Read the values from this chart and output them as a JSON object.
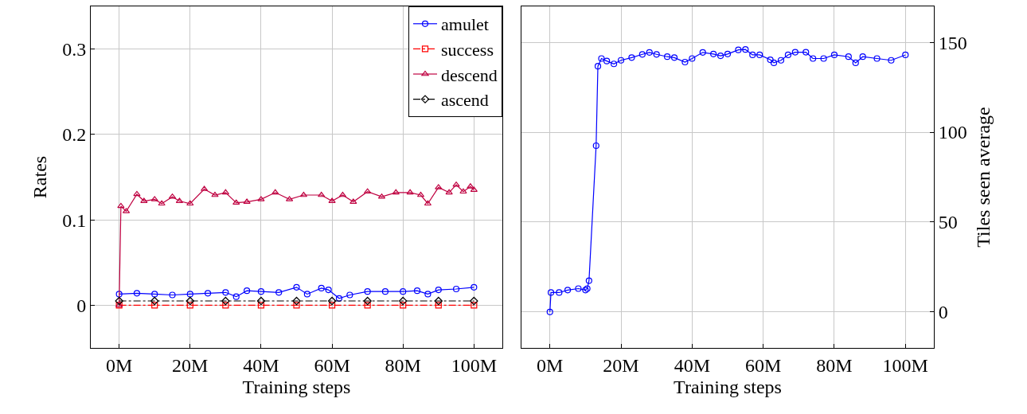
{
  "chart_data": [
    {
      "type": "line",
      "xlabel": "Training steps",
      "ylabel": "Rates",
      "xlim": [
        -8,
        108
      ],
      "ylim": [
        -0.05,
        0.35
      ],
      "xticks": [
        {
          "value": 0,
          "label": "0M"
        },
        {
          "value": 20,
          "label": "20M"
        },
        {
          "value": 40,
          "label": "40M"
        },
        {
          "value": 60,
          "label": "60M"
        },
        {
          "value": 80,
          "label": "80M"
        },
        {
          "value": 100,
          "label": "100M"
        }
      ],
      "yticks": [
        0,
        0.1,
        0.2,
        0.3
      ],
      "grid": true,
      "legend": "top right",
      "series": [
        {
          "name": "amulet",
          "color": "#0000ff",
          "marker": "circle",
          "line_style": "solid",
          "x": [
            0,
            5,
            10,
            15,
            20,
            25,
            30,
            33,
            36,
            40,
            45,
            50,
            53,
            57,
            59,
            62,
            65,
            70,
            75,
            80,
            84,
            87,
            90,
            95,
            100
          ],
          "values": [
            0.013,
            0.014,
            0.013,
            0.012,
            0.013,
            0.014,
            0.015,
            0.01,
            0.017,
            0.016,
            0.015,
            0.021,
            0.013,
            0.02,
            0.018,
            0.008,
            0.012,
            0.016,
            0.016,
            0.016,
            0.017,
            0.013,
            0.018,
            0.019,
            0.021
          ]
        },
        {
          "name": "success",
          "color": "#ff0000",
          "marker": "square",
          "line_style": "dashed",
          "x": [
            0,
            10,
            20,
            30,
            40,
            50,
            60,
            70,
            80,
            90,
            100
          ],
          "values": [
            0,
            0,
            0,
            0,
            0,
            0,
            0,
            0,
            0,
            0,
            0
          ]
        },
        {
          "name": "descend",
          "color": "#bf0040",
          "marker": "triangle",
          "line_style": "solid",
          "x": [
            0,
            0.5,
            2,
            5,
            7,
            10,
            12,
            15,
            17,
            20,
            24,
            27,
            30,
            33,
            36,
            40,
            44,
            48,
            52,
            57,
            60,
            63,
            66,
            70,
            74,
            78,
            82,
            85,
            87,
            90,
            93,
            95,
            97,
            99,
            100
          ],
          "values": [
            0,
            0.116,
            0.11,
            0.13,
            0.122,
            0.124,
            0.119,
            0.127,
            0.122,
            0.119,
            0.136,
            0.129,
            0.132,
            0.12,
            0.121,
            0.124,
            0.132,
            0.124,
            0.129,
            0.129,
            0.122,
            0.129,
            0.121,
            0.133,
            0.127,
            0.132,
            0.132,
            0.129,
            0.119,
            0.138,
            0.132,
            0.141,
            0.133,
            0.139,
            0.135
          ]
        },
        {
          "name": "ascend",
          "color": "#000000",
          "marker": "diamond",
          "line_style": "dashed",
          "x": [
            0,
            10,
            20,
            30,
            40,
            50,
            60,
            70,
            80,
            90,
            100
          ],
          "values": [
            0.005,
            0.005,
            0.005,
            0.005,
            0.005,
            0.005,
            0.005,
            0.005,
            0.005,
            0.005,
            0.005
          ]
        }
      ]
    },
    {
      "type": "line",
      "xlabel": "Training steps",
      "ylabel": "Tiles seen average",
      "xlim": [
        -8,
        108
      ],
      "ylim": [
        -20,
        170
      ],
      "xticks": [
        {
          "value": 0,
          "label": "0M"
        },
        {
          "value": 20,
          "label": "20M"
        },
        {
          "value": 40,
          "label": "40M"
        },
        {
          "value": 60,
          "label": "60M"
        },
        {
          "value": 80,
          "label": "80M"
        },
        {
          "value": 100,
          "label": "100M"
        }
      ],
      "yticks": [
        0,
        50,
        100,
        150
      ],
      "grid": true,
      "legend": false,
      "series": [
        {
          "color": "#0000ff",
          "marker": "circle",
          "line_style": "solid",
          "x": [
            0,
            0.3,
            2.6,
            5,
            8,
            10,
            10.5,
            11,
            13,
            13.5,
            14.5,
            16,
            18,
            20,
            23,
            26,
            28,
            30,
            33,
            35,
            38,
            40,
            43,
            46,
            48,
            50,
            53,
            55,
            57,
            59,
            62,
            63,
            65,
            67,
            69,
            72,
            74,
            77,
            80,
            84,
            86,
            88,
            92,
            96,
            100
          ],
          "values": [
            0,
            10.8,
            10.8,
            12.2,
            13,
            12.2,
            13,
            17.4,
            92.5,
            136.7,
            141,
            139.6,
            138,
            140,
            141.5,
            143.3,
            144.4,
            143.3,
            142,
            141.5,
            139,
            141,
            144.4,
            143.5,
            142.5,
            143.5,
            145.8,
            146,
            143,
            143,
            140.3,
            138.6,
            140,
            143,
            144.5,
            144.5,
            141,
            141,
            143,
            142,
            138.6,
            142,
            141,
            140,
            143
          ]
        }
      ]
    }
  ]
}
